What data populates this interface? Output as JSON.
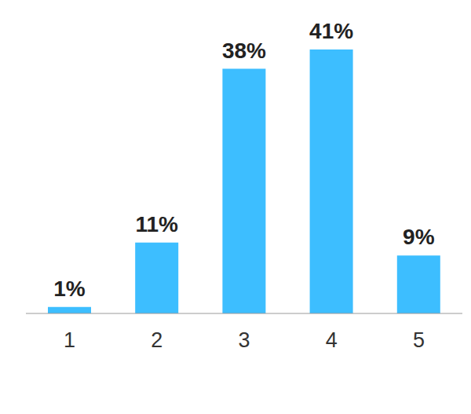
{
  "chart_data": {
    "type": "bar",
    "categories": [
      "1",
      "2",
      "3",
      "4",
      "5"
    ],
    "values": [
      1,
      11,
      38,
      41,
      9
    ],
    "value_labels": [
      "1%",
      "11%",
      "38%",
      "41%",
      "9%"
    ],
    "color": "#3dbeff",
    "ylim": [
      0,
      41
    ],
    "data_labels": true,
    "tick_labels": "x"
  }
}
